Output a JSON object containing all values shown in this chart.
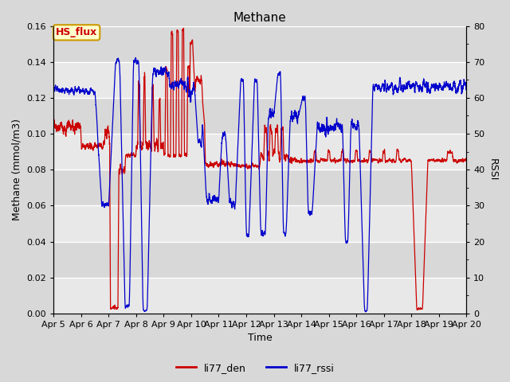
{
  "title": "Methane",
  "xlabel": "Time",
  "ylabel_left": "Methane (mmol/m3)",
  "ylabel_right": "RSSI",
  "ylim_left": [
    0.0,
    0.16
  ],
  "ylim_right": [
    0,
    80
  ],
  "yticks_left": [
    0.0,
    0.02,
    0.04,
    0.06,
    0.08,
    0.1,
    0.12,
    0.14,
    0.16
  ],
  "yticks_right": [
    0,
    10,
    20,
    30,
    40,
    50,
    60,
    70,
    80
  ],
  "xtick_labels": [
    "Apr 5",
    "Apr 6",
    "Apr 7",
    "Apr 8",
    "Apr 9",
    "Apr 10",
    "Apr 11",
    "Apr 12",
    "Apr 13",
    "Apr 14",
    "Apr 15",
    "Apr 16",
    "Apr 17",
    "Apr 18",
    "Apr 19",
    "Apr 20"
  ],
  "color_red": "#cc0000",
  "color_blue": "#0000cc",
  "legend_labels": [
    "li77_den",
    "li77_rssi"
  ],
  "annotation_text": "HS_flux",
  "annotation_bg": "#ffffcc",
  "annotation_border": "#cc9900",
  "bg_color": "#e8e8e8",
  "grid_color": "#ffffff",
  "title_fontsize": 11,
  "label_fontsize": 9,
  "tick_fontsize": 8,
  "legend_fontsize": 9
}
